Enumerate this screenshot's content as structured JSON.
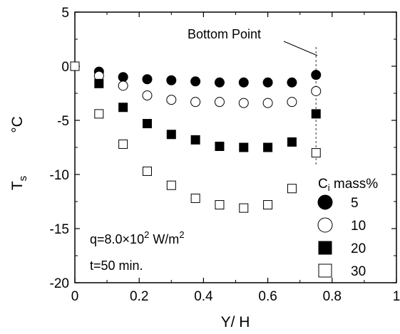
{
  "chart_data": {
    "type": "scatter",
    "title": "",
    "xlabel": "Y/ H",
    "ylabel_main": "T",
    "ylabel_sub": "s",
    "ylabel_unit": "°C",
    "xlim": [
      0,
      1
    ],
    "ylim": [
      -20,
      5
    ],
    "xticks": [
      "0",
      "0.2",
      "0.4",
      "0.6",
      "0.8",
      "1"
    ],
    "yticks": [
      "5",
      "0",
      "-5",
      "-10",
      "-15",
      "-20"
    ],
    "grid": false,
    "legend": {
      "title_main": "C",
      "title_sub": "i",
      "title_rest": " mass%",
      "placement": "right"
    },
    "annotations": {
      "bottom_point": "Bottom Point",
      "heat_flux_prefix": "q=8.0×10",
      "heat_flux_exp": "2",
      "heat_flux_unit": " W/m",
      "heat_flux_unit_exp": "2",
      "time": "t=50 min."
    },
    "series": [
      {
        "name": "5",
        "marker": "filled-circle",
        "x": [
          0.075,
          0.15,
          0.225,
          0.3,
          0.375,
          0.45,
          0.525,
          0.6,
          0.675,
          0.75
        ],
        "y": [
          -0.5,
          -1.0,
          -1.2,
          -1.3,
          -1.4,
          -1.5,
          -1.5,
          -1.5,
          -1.5,
          -0.8
        ]
      },
      {
        "name": "10",
        "marker": "open-circle",
        "x": [
          0.075,
          0.15,
          0.225,
          0.3,
          0.375,
          0.45,
          0.525,
          0.6,
          0.675,
          0.75
        ],
        "y": [
          -0.9,
          -1.8,
          -2.7,
          -3.1,
          -3.3,
          -3.3,
          -3.4,
          -3.4,
          -3.3,
          -2.3
        ]
      },
      {
        "name": "20",
        "marker": "filled-square",
        "x": [
          0.075,
          0.15,
          0.225,
          0.3,
          0.375,
          0.45,
          0.525,
          0.6,
          0.675,
          0.75
        ],
        "y": [
          -1.6,
          -3.8,
          -5.3,
          -6.3,
          -6.8,
          -7.4,
          -7.5,
          -7.5,
          -7.0,
          -4.4
        ]
      },
      {
        "name": "30",
        "marker": "open-square",
        "x": [
          0.0,
          0.075,
          0.15,
          0.225,
          0.3,
          0.375,
          0.45,
          0.525,
          0.6,
          0.675,
          0.75
        ],
        "y": [
          0.0,
          -4.4,
          -7.2,
          -9.7,
          -11.0,
          -12.2,
          -12.8,
          -13.1,
          -12.8,
          -11.3,
          -8.0
        ]
      }
    ],
    "bottom_line_x": 0.75
  }
}
